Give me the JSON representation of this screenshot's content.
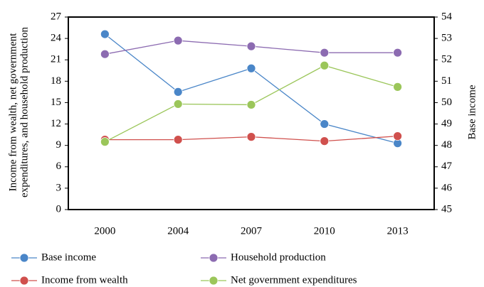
{
  "chart_data": {
    "type": "line",
    "ylabel": [
      "Income from wealth, net government",
      "expenditures, and household production"
    ],
    "y2label": "Base income",
    "categories": [
      "2000",
      "2004",
      "2007",
      "2010",
      "2013"
    ],
    "ylim": [
      0,
      27
    ],
    "yticks": [
      0,
      3,
      6,
      9,
      12,
      15,
      18,
      21,
      24,
      27
    ],
    "y2lim": [
      45,
      54
    ],
    "y2ticks": [
      45,
      46,
      47,
      48,
      49,
      50,
      51,
      52,
      53,
      54
    ],
    "series": [
      {
        "name": "Base income",
        "color": "#4a86c8",
        "axis": "y2",
        "values": [
          53.2,
          50.5,
          51.6,
          49.0,
          48.1
        ]
      },
      {
        "name": "Household production",
        "color": "#8c6bb1",
        "values": [
          21.8,
          23.7,
          22.9,
          22.0,
          22.0
        ]
      },
      {
        "name": "Income from wealth",
        "color": "#d0504d",
        "values": [
          9.8,
          9.8,
          10.2,
          9.6,
          10.3
        ]
      },
      {
        "name": "Net government expenditures",
        "color": "#9bc65a",
        "values": [
          9.5,
          14.8,
          14.7,
          20.2,
          17.2
        ]
      }
    ]
  }
}
